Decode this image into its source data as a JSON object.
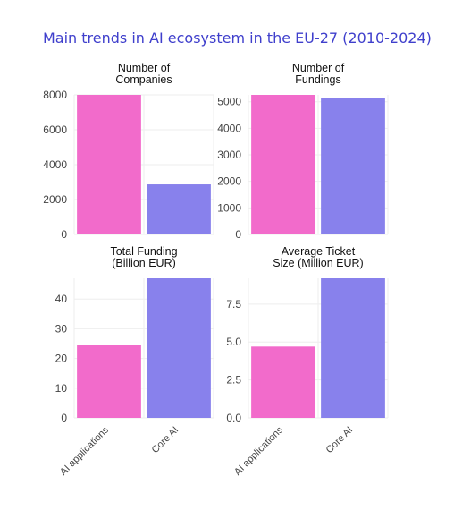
{
  "title": "Main trends in AI ecosystem in the EU-27 (2010-2024)",
  "colors": {
    "title": "#3f3fcc",
    "ai_applications": "#f26bcb",
    "core_ai": "#8881ec",
    "grid": "#eeeeee"
  },
  "chart_data": [
    {
      "type": "bar",
      "title": [
        "Number of",
        "Companies"
      ],
      "categories": [
        "AI applications",
        "Core AI"
      ],
      "values": [
        8000,
        2870
      ],
      "ylim": [
        0,
        8000
      ],
      "yticks": [
        "0",
        "2000",
        "4000",
        "6000",
        "8000"
      ],
      "grid": true
    },
    {
      "type": "bar",
      "title": [
        "Number of",
        "Fundings"
      ],
      "categories": [
        "AI applications",
        "Core AI"
      ],
      "values": [
        5260,
        5150
      ],
      "ylim": [
        0,
        5260
      ],
      "yticks": [
        "0",
        "1000",
        "2000",
        "3000",
        "4000",
        "5000"
      ],
      "grid": true
    },
    {
      "type": "bar",
      "title": [
        "Total Funding",
        "(Billion EUR)"
      ],
      "categories": [
        "AI applications",
        "Core AI"
      ],
      "values": [
        24.6,
        47
      ],
      "ylim": [
        0,
        47
      ],
      "yticks": [
        "0",
        "10",
        "20",
        "30",
        "40"
      ],
      "grid": true
    },
    {
      "type": "bar",
      "title": [
        "Average Ticket",
        "Size (Million EUR)"
      ],
      "categories": [
        "AI applications",
        "Core AI"
      ],
      "values": [
        4.7,
        9.2
      ],
      "ylim": [
        0,
        9.2
      ],
      "yticks": [
        "0.0",
        "2.5",
        "5.0",
        "7.5"
      ],
      "grid": true
    }
  ]
}
